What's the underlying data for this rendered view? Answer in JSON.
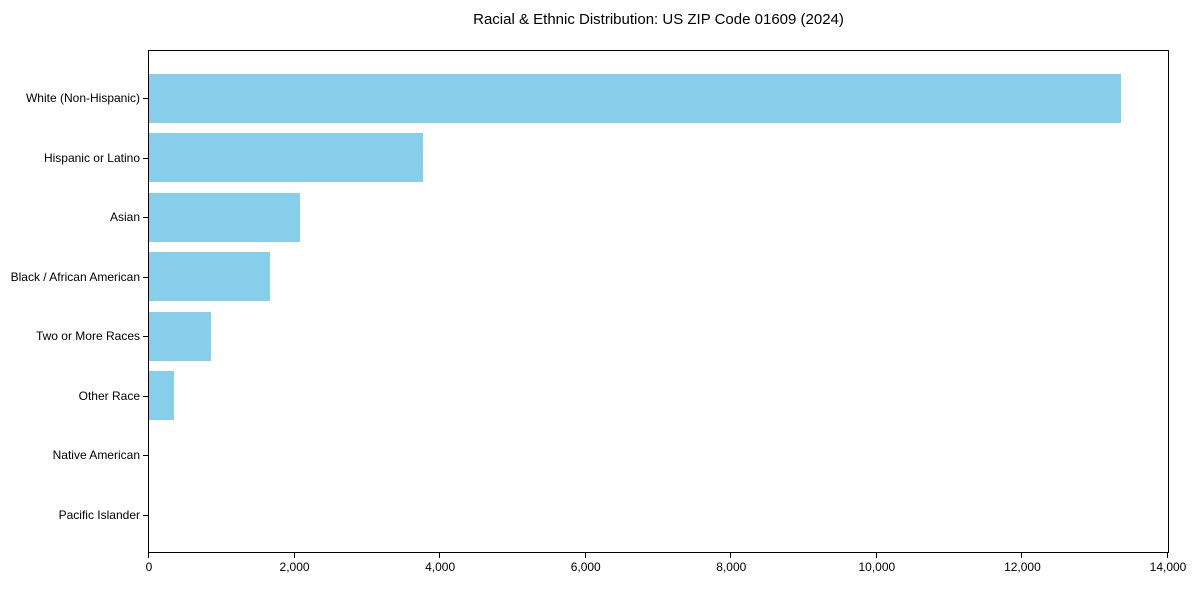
{
  "chart_data": {
    "type": "bar",
    "orientation": "horizontal",
    "title": "Racial & Ethnic Distribution: US ZIP Code 01609 (2024)",
    "categories": [
      "White (Non-Hispanic)",
      "Hispanic or Latino",
      "Asian",
      "Black / African American",
      "Two or More Races",
      "Other Race",
      "Native American",
      "Pacific Islander"
    ],
    "values": [
      13350,
      3760,
      2080,
      1660,
      850,
      340,
      0,
      0
    ],
    "xlabel": "",
    "ylabel": "",
    "xlim": [
      0,
      14000
    ],
    "x_ticks": [
      0,
      2000,
      4000,
      6000,
      8000,
      10000,
      12000,
      14000
    ],
    "x_tick_labels": [
      "0",
      "2,000",
      "4,000",
      "6,000",
      "8,000",
      "10,000",
      "12,000",
      "14,000"
    ],
    "bar_color": "#87CEEB",
    "axis_color": "#000000",
    "text_color": "#000000",
    "background_color": "#ffffff",
    "grid": false,
    "legend": false
  }
}
